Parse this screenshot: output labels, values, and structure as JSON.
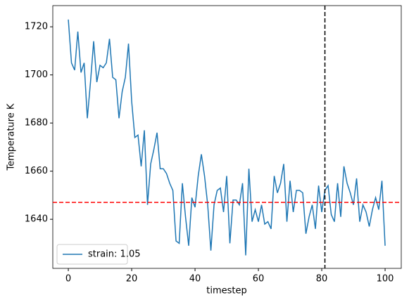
{
  "chart_data": {
    "type": "line",
    "x_label": "timestep",
    "y_label": "Temperature K",
    "x": [
      0,
      1,
      2,
      3,
      4,
      5,
      6,
      7,
      8,
      9,
      10,
      11,
      12,
      13,
      14,
      15,
      16,
      17,
      18,
      19,
      20,
      21,
      22,
      23,
      24,
      25,
      26,
      27,
      28,
      29,
      30,
      31,
      32,
      33,
      34,
      35,
      36,
      37,
      38,
      39,
      40,
      41,
      42,
      43,
      44,
      45,
      46,
      47,
      48,
      49,
      50,
      51,
      52,
      53,
      54,
      55,
      56,
      57,
      58,
      59,
      60,
      61,
      62,
      63,
      64,
      65,
      66,
      67,
      68,
      69,
      70,
      71,
      72,
      73,
      74,
      75,
      76,
      77,
      78,
      79,
      80,
      81,
      82,
      83,
      84,
      85,
      86,
      87,
      88,
      89,
      90,
      91,
      92,
      93,
      94,
      95,
      96,
      97,
      98,
      99,
      100
    ],
    "series": [
      {
        "name": "strain: 1.05",
        "color": "#1f77b4",
        "values": [
          1723,
          1705,
          1702,
          1718,
          1701,
          1705,
          1682,
          1697,
          1714,
          1697,
          1704,
          1703,
          1705,
          1715,
          1699,
          1698,
          1682,
          1693,
          1699,
          1713,
          1689,
          1674,
          1675,
          1662,
          1677,
          1646,
          1663,
          1669,
          1676,
          1661,
          1661,
          1659,
          1655,
          1652,
          1631,
          1630,
          1655,
          1641,
          1629,
          1649,
          1645,
          1658,
          1667,
          1658,
          1646,
          1627,
          1646,
          1652,
          1653,
          1643,
          1658,
          1630,
          1648,
          1648,
          1646,
          1655,
          1625,
          1661,
          1639,
          1644,
          1639,
          1646,
          1638,
          1639,
          1636,
          1658,
          1651,
          1655,
          1663,
          1639,
          1656,
          1643,
          1652,
          1652,
          1651,
          1634,
          1641,
          1646,
          1636,
          1654,
          1643,
          1652,
          1654,
          1642,
          1639,
          1655,
          1641,
          1662,
          1655,
          1651,
          1646,
          1657,
          1639,
          1646,
          1643,
          1637,
          1644,
          1649,
          1644,
          1656,
          1629
        ]
      }
    ],
    "hline": {
      "value": 1647,
      "color": "#ff0000"
    },
    "vline": {
      "value": 81,
      "color": "#000000"
    },
    "xlim": [
      -4.9,
      105.1
    ],
    "ylim": [
      1619.6,
      1728.8
    ],
    "xticks": [
      0,
      20,
      40,
      60,
      80,
      100
    ],
    "yticks": [
      1640,
      1660,
      1680,
      1700,
      1720
    ],
    "legend": "lower left"
  }
}
